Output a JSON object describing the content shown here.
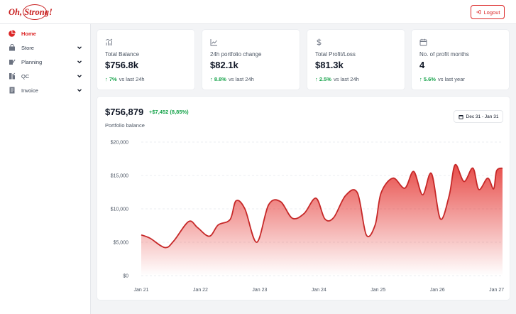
{
  "app": {
    "logo_text": "Oh, Strong!"
  },
  "header": {
    "logout_label": "Logout"
  },
  "sidebar": {
    "items": [
      {
        "label": "Home",
        "icon": "pie-chart-icon",
        "active": true,
        "expandable": false
      },
      {
        "label": "Store",
        "icon": "store-icon",
        "active": false,
        "expandable": true
      },
      {
        "label": "Planning",
        "icon": "planning-icon",
        "active": false,
        "expandable": true
      },
      {
        "label": "QC",
        "icon": "qc-icon",
        "active": false,
        "expandable": true
      },
      {
        "label": "Invoice",
        "icon": "invoice-icon",
        "active": false,
        "expandable": true
      }
    ]
  },
  "stats": [
    {
      "icon": "bar-chart-icon",
      "label": "Total Balance",
      "value": "$756.8k",
      "change": "7%",
      "suffix": "vs last 24h"
    },
    {
      "icon": "line-chart-icon",
      "label": "24h portfolio change",
      "value": "$82.1k",
      "change": "8.8%",
      "suffix": "vs last 24h"
    },
    {
      "icon": "dollar-icon",
      "label": "Total Profit/Loss",
      "value": "$81.3k",
      "change": "2.5%",
      "suffix": "vs last 24h"
    },
    {
      "icon": "calendar-icon",
      "label": "No. of profit months",
      "value": "4",
      "change": "5.6%",
      "suffix": "vs last year"
    }
  ],
  "portfolio": {
    "value": "$756,879",
    "change": "+$7,452 (8,85%)",
    "label": "Portfolio balance",
    "date_range": "Dec 31 - Jan 31"
  },
  "colors": {
    "accent": "#dc2626",
    "positive": "#16a34a",
    "line": "#c62828"
  },
  "chart_data": {
    "type": "area",
    "x_ticks": [
      "Jan 21",
      "Jan 22",
      "Jan 23",
      "Jan 24",
      "Jan 25",
      "Jan 26",
      "Jan 27"
    ],
    "y_ticks": [
      "$0",
      "$5,000",
      "$10,000",
      "$15,000",
      "$20,000"
    ],
    "ylim": [
      0,
      20000
    ],
    "xlim": [
      21,
      27.1
    ],
    "grid": true,
    "series": [
      {
        "x": [
          21.0,
          21.15,
          21.4,
          21.55,
          21.8,
          21.95,
          22.15,
          22.3,
          22.5,
          22.6,
          22.75,
          22.95,
          23.15,
          23.35,
          23.55,
          23.75,
          23.95,
          24.1,
          24.25,
          24.45,
          24.65,
          24.8,
          24.95,
          25.05,
          25.25,
          25.45,
          25.6,
          25.75,
          25.9,
          26.05,
          26.2,
          26.3,
          26.45,
          26.6,
          26.7,
          26.85,
          26.95,
          27.0,
          27.1
        ],
        "y": [
          6100,
          5600,
          4200,
          5200,
          8100,
          7200,
          5900,
          7600,
          8400,
          11200,
          10000,
          5000,
          10600,
          11100,
          8600,
          9300,
          11600,
          8500,
          8700,
          12000,
          12400,
          6100,
          7600,
          12400,
          14600,
          13100,
          15600,
          12100,
          15300,
          8500,
          12000,
          16600,
          14100,
          16100,
          12900,
          14600,
          13000,
          15700,
          16100
        ]
      }
    ]
  }
}
